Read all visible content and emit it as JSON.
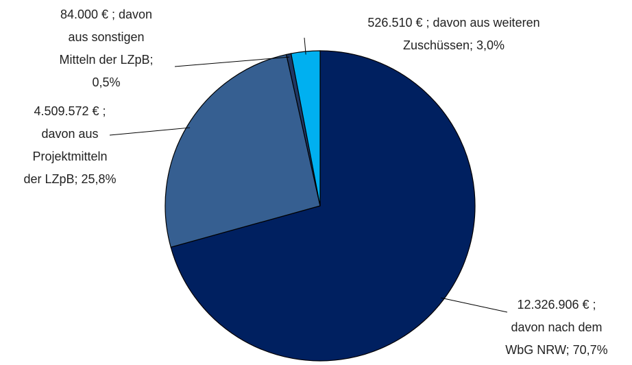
{
  "chart_data": {
    "type": "pie",
    "values": [
      70.7,
      25.8,
      0.5,
      3.0
    ],
    "value_labels": [
      [
        "12.326.906 € ;",
        "davon nach dem",
        "WbG NRW; 70,7%"
      ],
      [
        "4.509.572 € ;",
        "davon aus",
        "Projektmitteln",
        "der LZpB; 25,8%"
      ],
      [
        "84.000 € ; davon",
        "aus sonstigen",
        "Mitteln der LZpB;",
        "0,5%"
      ],
      [
        "526.510 € ; davon aus weiteren",
        "Zuschüssen; 3,0%"
      ]
    ],
    "colors": [
      "#002060",
      "#365f91",
      "#1f3864",
      "#00b0f0"
    ]
  }
}
